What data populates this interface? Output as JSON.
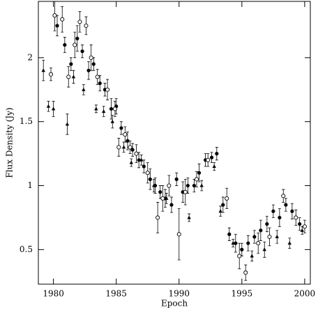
{
  "chart_data": {
    "type": "scatter",
    "x_label": "Epoch",
    "y_label": "Flux Density (Jy)",
    "xlim": [
      1978.8,
      2000.45
    ],
    "ylim": [
      0.23,
      2.44
    ],
    "xticks": [
      1980,
      1985,
      1990,
      1995,
      2000
    ],
    "yticks": [
      0.5,
      1,
      1.5,
      2
    ],
    "series": [
      {
        "marker": "filled-circle",
        "color": "#000000",
        "x": [
          1980.3,
          1980.9,
          1981.4,
          1981.9,
          1982.3,
          1982.8,
          1983.2,
          1983.7,
          1984.1,
          1984.6,
          1985.0,
          1985.4,
          1985.9,
          1986.3,
          1986.8,
          1987.2,
          1987.7,
          1988.1,
          1988.5,
          1988.9,
          1989.4,
          1989.8,
          1990.3,
          1990.7,
          1991.2,
          1991.6,
          1992.1,
          1992.6,
          1993.0,
          1993.5,
          1994.0,
          1994.5,
          1995.0,
          1995.5,
          1996.0,
          1996.5,
          1997.0,
          1997.5,
          1998.0,
          1998.5,
          1999.0,
          1999.6
        ],
        "values": [
          2.25,
          2.1,
          1.95,
          2.15,
          2.05,
          1.9,
          1.95,
          1.8,
          1.75,
          1.6,
          1.62,
          1.45,
          1.35,
          1.28,
          1.2,
          1.15,
          1.05,
          1.0,
          0.95,
          0.9,
          0.85,
          1.05,
          0.95,
          1.0,
          1.0,
          1.1,
          1.2,
          1.22,
          1.25,
          0.85,
          0.62,
          0.55,
          0.5,
          0.55,
          0.6,
          0.65,
          0.7,
          0.8,
          0.75,
          0.85,
          0.8,
          0.7
        ],
        "errors": [
          0.08,
          0.06,
          0.05,
          0.1,
          0.05,
          0.07,
          0.05,
          0.06,
          0.05,
          0.08,
          0.06,
          0.05,
          0.07,
          0.05,
          0.06,
          0.05,
          0.08,
          0.06,
          0.05,
          0.07,
          0.06,
          0.05,
          0.08,
          0.06,
          0.05,
          0.07,
          0.05,
          0.04,
          0.05,
          0.06,
          0.05,
          0.07,
          0.05,
          0.06,
          0.05,
          0.08,
          0.06,
          0.05,
          0.07,
          0.05,
          0.06,
          0.05
        ]
      },
      {
        "marker": "open-circle",
        "color": "#000000",
        "x": [
          1979.8,
          1980.1,
          1980.7,
          1981.2,
          1981.7,
          1982.1,
          1982.6,
          1983.0,
          1983.5,
          1984.3,
          1984.9,
          1985.2,
          1985.7,
          1986.1,
          1986.6,
          1987.5,
          1988.3,
          1988.7,
          1989.2,
          1990.0,
          1990.5,
          1991.4,
          1992.3,
          1993.8,
          1994.8,
          1995.3,
          1996.3,
          1997.2,
          1998.3,
          1999.3,
          2000.0
        ],
        "values": [
          1.87,
          2.33,
          2.3,
          1.85,
          2.1,
          2.28,
          2.25,
          2.0,
          1.85,
          1.75,
          1.6,
          1.3,
          1.4,
          1.3,
          1.25,
          1.1,
          0.75,
          0.9,
          1.0,
          0.62,
          0.95,
          1.05,
          1.2,
          0.9,
          0.45,
          0.32,
          0.55,
          0.6,
          0.92,
          0.75,
          0.68
        ],
        "errors": [
          0.05,
          0.12,
          0.1,
          0.08,
          0.1,
          0.08,
          0.07,
          0.1,
          0.06,
          0.08,
          0.06,
          0.07,
          0.06,
          0.05,
          0.07,
          0.08,
          0.12,
          0.1,
          0.08,
          0.2,
          0.1,
          0.06,
          0.05,
          0.08,
          0.1,
          0.06,
          0.08,
          0.07,
          0.05,
          0.06,
          0.05
        ]
      },
      {
        "marker": "triangle",
        "color": "#000000",
        "x": [
          1979.2,
          1979.6,
          1980.0,
          1981.1,
          1981.6,
          1982.4,
          1983.4,
          1984.0,
          1984.7,
          1985.6,
          1986.2,
          1987.0,
          1988.0,
          1989.0,
          1990.8,
          1991.8,
          1992.8,
          1993.3,
          1994.3,
          1995.8,
          1996.8,
          1997.8,
          1998.8,
          1999.8
        ],
        "values": [
          1.9,
          1.62,
          1.6,
          1.48,
          1.85,
          1.75,
          1.6,
          1.58,
          1.5,
          1.3,
          1.18,
          1.2,
          1.0,
          0.9,
          0.75,
          1.0,
          1.15,
          0.8,
          0.55,
          0.45,
          0.5,
          0.6,
          0.55,
          0.65
        ],
        "errors": [
          0.08,
          0.04,
          0.06,
          0.08,
          0.05,
          0.04,
          0.03,
          0.04,
          0.05,
          0.04,
          0.03,
          0.04,
          0.05,
          0.04,
          0.03,
          0.04,
          0.03,
          0.04,
          0.03,
          0.04,
          0.06,
          0.05,
          0.04,
          0.03
        ]
      }
    ]
  }
}
